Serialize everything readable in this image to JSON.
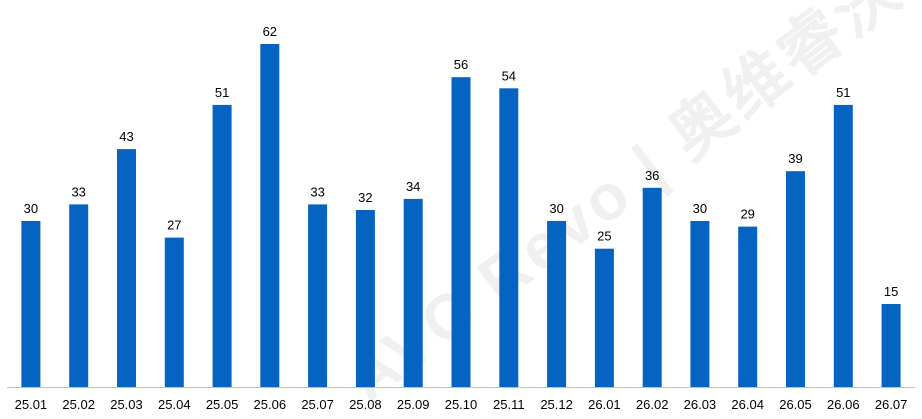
{
  "colors": {
    "bar": "#0563C1",
    "axis": "#BFBFBF",
    "text": "#000000"
  },
  "watermark": "AVC Revo | 奥维睿沃",
  "chart_data": {
    "type": "bar",
    "title": "",
    "xlabel": "",
    "ylabel": "",
    "categories": [
      "25.01",
      "25.02",
      "25.03",
      "25.04",
      "25.05",
      "25.06",
      "25.07",
      "25.08",
      "25.09",
      "25.10",
      "25.11",
      "25.12",
      "26.01",
      "26.02",
      "26.03",
      "26.04",
      "26.05",
      "26.06",
      "26.07"
    ],
    "values": [
      30,
      33,
      43,
      27,
      51,
      62,
      33,
      32,
      34,
      56,
      54,
      30,
      25,
      36,
      30,
      29,
      39,
      51,
      15
    ],
    "ylim": [
      0,
      62
    ],
    "grid": false,
    "legend": "none",
    "data_labels": true
  }
}
